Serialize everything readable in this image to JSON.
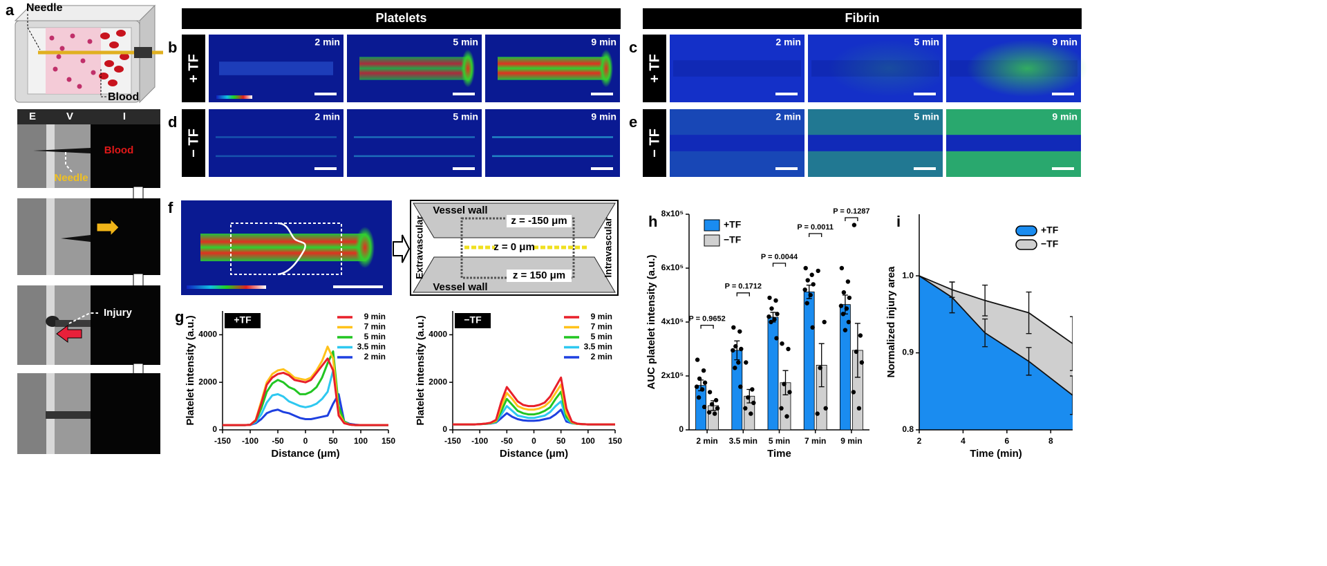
{
  "figure": {
    "a": {
      "letter": "a",
      "needle": "Needle",
      "blood": "Blood",
      "zones": [
        "E",
        "V",
        "I"
      ],
      "blood2": "Blood",
      "needle2": "Needle",
      "injury": "Injury"
    },
    "headers": [
      "Platelets",
      "Fibrin"
    ],
    "rows": [
      {
        "letter": "b",
        "condition": "+ TF",
        "times": [
          "2 min",
          "5 min",
          "9 min"
        ]
      },
      {
        "letter": "c",
        "condition": "+ TF",
        "times": [
          "2 min",
          "5 min",
          "9 min"
        ]
      },
      {
        "letter": "d",
        "condition": "− TF",
        "times": [
          "2 min",
          "5 min",
          "9 min"
        ]
      },
      {
        "letter": "e",
        "condition": "− TF",
        "times": [
          "2 min",
          "5 min",
          "9 min"
        ]
      }
    ],
    "f": {
      "letter": "f",
      "vessel_wall_top": "Vessel wall",
      "vessel_wall_bottom": "Vessel wall",
      "z_top": "z = -150 μm",
      "z_mid": "z = 0 μm",
      "z_bottom": "z = 150 μm",
      "extravascular": "Extravascular",
      "intravascular": "Intravascular"
    },
    "g_letter": "g",
    "h_letter": "h",
    "i_letter": "i"
  },
  "chart_data": [
    {
      "type": "line",
      "tag": "+TF",
      "xlabel": "Distance (μm)",
      "ylabel": "Platelet intensity (a.u.)",
      "x": [
        -150,
        -140,
        -130,
        -120,
        -110,
        -100,
        -90,
        -80,
        -70,
        -60,
        -50,
        -40,
        -30,
        -20,
        -10,
        0,
        10,
        20,
        30,
        40,
        50,
        60,
        70,
        80,
        90,
        100,
        110,
        120,
        130,
        140,
        150
      ],
      "xlim": [
        -150,
        150
      ],
      "xticks": [
        -150,
        -100,
        -50,
        0,
        50,
        100,
        150
      ],
      "ylim": [
        0,
        5000
      ],
      "yticks": [
        0,
        2000,
        4000
      ],
      "series": [
        {
          "name": "9 min",
          "color": "#e8202a",
          "values": [
            200,
            200,
            200,
            200,
            200,
            210,
            400,
            1100,
            1900,
            2200,
            2350,
            2400,
            2300,
            2100,
            2050,
            2000,
            2100,
            2400,
            2700,
            3000,
            2500,
            600,
            280,
            220,
            200,
            200,
            200,
            200,
            200,
            200,
            200
          ]
        },
        {
          "name": "7 min",
          "color": "#ffc21a",
          "values": [
            200,
            200,
            200,
            200,
            200,
            210,
            420,
            1200,
            2000,
            2350,
            2500,
            2550,
            2400,
            2200,
            2150,
            2100,
            2200,
            2500,
            2900,
            3500,
            3000,
            700,
            300,
            220,
            200,
            200,
            200,
            200,
            200,
            200,
            200
          ]
        },
        {
          "name": "5 min",
          "color": "#22c522",
          "values": [
            200,
            200,
            200,
            200,
            200,
            210,
            380,
            900,
            1600,
            1950,
            2100,
            2000,
            1800,
            1700,
            1500,
            1500,
            1600,
            1800,
            2200,
            2800,
            3300,
            1000,
            350,
            220,
            200,
            200,
            200,
            200,
            200,
            200,
            200
          ]
        },
        {
          "name": "3.5 min",
          "color": "#2ec8f0",
          "values": [
            200,
            200,
            200,
            200,
            200,
            210,
            330,
            650,
            1150,
            1450,
            1500,
            1400,
            1200,
            1100,
            1000,
            950,
            1000,
            1100,
            1300,
            1600,
            2500,
            800,
            300,
            220,
            200,
            200,
            200,
            200,
            200,
            200,
            200
          ]
        },
        {
          "name": "2 min",
          "color": "#1e40e0",
          "values": [
            200,
            200,
            200,
            200,
            200,
            210,
            280,
            450,
            700,
            800,
            850,
            750,
            700,
            600,
            500,
            450,
            450,
            500,
            550,
            600,
            1100,
            1500,
            350,
            250,
            220,
            200,
            200,
            200,
            200,
            200,
            200
          ]
        }
      ]
    },
    {
      "type": "line",
      "tag": "−TF",
      "xlabel": "Distance (μm)",
      "ylabel": "Platelet intensity (a.u.)",
      "x": [
        -150,
        -140,
        -130,
        -120,
        -110,
        -100,
        -90,
        -80,
        -70,
        -60,
        -50,
        -40,
        -30,
        -20,
        -10,
        0,
        10,
        20,
        30,
        40,
        50,
        60,
        70,
        80,
        90,
        100,
        110,
        120,
        130,
        140,
        150
      ],
      "xlim": [
        -150,
        150
      ],
      "xticks": [
        -150,
        -100,
        -50,
        0,
        50,
        100,
        150
      ],
      "ylim": [
        0,
        5000
      ],
      "yticks": [
        0,
        2000,
        4000
      ],
      "series": [
        {
          "name": "9 min",
          "color": "#e8202a",
          "values": [
            230,
            230,
            230,
            230,
            230,
            240,
            260,
            300,
            420,
            1200,
            1800,
            1500,
            1200,
            1050,
            1000,
            1000,
            1050,
            1150,
            1400,
            1800,
            2200,
            900,
            350,
            260,
            240,
            230,
            230,
            230,
            230,
            230,
            230
          ]
        },
        {
          "name": "7 min",
          "color": "#ffc21a",
          "values": [
            230,
            230,
            230,
            230,
            230,
            240,
            260,
            290,
            380,
            1000,
            1550,
            1300,
            1000,
            900,
            850,
            850,
            900,
            1000,
            1200,
            1550,
            1900,
            700,
            320,
            250,
            240,
            230,
            230,
            230,
            230,
            230,
            230
          ]
        },
        {
          "name": "5 min",
          "color": "#22c522",
          "values": [
            230,
            230,
            230,
            230,
            230,
            240,
            255,
            280,
            350,
            800,
            1300,
            1050,
            800,
            700,
            650,
            650,
            700,
            800,
            950,
            1300,
            1600,
            550,
            300,
            250,
            240,
            230,
            230,
            230,
            230,
            230,
            230
          ]
        },
        {
          "name": "3.5 min",
          "color": "#2ec8f0",
          "values": [
            230,
            230,
            230,
            230,
            230,
            240,
            250,
            270,
            330,
            650,
            1000,
            800,
            600,
            550,
            500,
            500,
            550,
            600,
            750,
            1000,
            1200,
            450,
            290,
            250,
            240,
            230,
            230,
            230,
            230,
            230,
            230
          ]
        },
        {
          "name": "2 min",
          "color": "#1e40e0",
          "values": [
            230,
            230,
            230,
            230,
            230,
            240,
            250,
            265,
            310,
            500,
            700,
            550,
            450,
            400,
            380,
            380,
            400,
            450,
            500,
            650,
            850,
            350,
            280,
            250,
            240,
            230,
            230,
            230,
            230,
            230,
            230
          ]
        }
      ]
    },
    {
      "type": "bar",
      "xlabel": "Time",
      "ylabel": "AUC platelet intensity (a.u.)",
      "categories": [
        "2 min",
        "3.5 min",
        "5 min",
        "7 min",
        "9 min"
      ],
      "p_values": [
        "P = 0.9652",
        "P = 0.1712",
        "P = 0.0044",
        "P = 0.0011",
        "P = 0.1287"
      ],
      "ylim": [
        0,
        800000
      ],
      "yticks": [
        0,
        {
          "value": 200000,
          "label": "2x10⁵"
        },
        {
          "value": 400000,
          "label": "4x10⁵"
        },
        {
          "value": 600000,
          "label": "6x10⁵"
        },
        {
          "value": 800000,
          "label": "8x10⁵"
        }
      ],
      "series": [
        {
          "name": "+TF",
          "color": "#1a8cf0",
          "values": [
            165000,
            295000,
            418000,
            512000,
            465000
          ],
          "errors": [
            20000,
            35000,
            18000,
            25000,
            35000
          ],
          "points": [
            [
              260000,
              220000,
              190000,
              175000,
              160000,
              150000,
              120000,
              85000
            ],
            [
              380000,
              365000,
              310000,
              300000,
              295000,
              250000,
              230000,
              160000
            ],
            [
              490000,
              480000,
              450000,
              430000,
              420000,
              410000,
              400000,
              340000
            ],
            [
              600000,
              575000,
              555000,
              540000,
              520000,
              500000,
              470000,
              380000
            ],
            [
              600000,
              550000,
              510000,
              490000,
              460000,
              450000,
              430000,
              400000,
              370000
            ]
          ]
        },
        {
          "name": "−TF",
          "color": "#d0d0d0",
          "values": [
            90000,
            125000,
            175000,
            240000,
            295000
          ],
          "errors": [
            18000,
            25000,
            45000,
            80000,
            100000
          ],
          "points": [
            [
              140000,
              110000,
              95000,
              80000,
              65000,
              60000
            ],
            [
              250000,
              150000,
              120000,
              100000,
              80000,
              60000
            ],
            [
              320000,
              300000,
              170000,
              140000,
              80000,
              50000
            ],
            [
              590000,
              400000,
              230000,
              80000,
              60000
            ],
            [
              760000,
              350000,
              290000,
              250000,
              140000,
              80000
            ]
          ]
        }
      ]
    },
    {
      "type": "area",
      "xlabel": "Time (min)",
      "ylabel": "Normalized injury area",
      "x": [
        2,
        3.5,
        5,
        7,
        9
      ],
      "xlim": [
        2,
        9
      ],
      "xticks": [
        2,
        4,
        6,
        8
      ],
      "ylim": [
        0.8,
        1.08
      ],
      "yticks": [
        0.8,
        0.9,
        {
          "value": 1,
          "label": "1.0"
        }
      ],
      "series": [
        {
          "name": "+TF",
          "color": "#1a8cf0",
          "values": [
            1,
            0.972,
            0.926,
            0.889,
            0.845
          ],
          "errors": [
            null,
            0.02,
            0.018,
            0.018,
            0.025
          ]
        },
        {
          "name": "−TF",
          "color": "#cfcfcf",
          "values": [
            1,
            0.982,
            0.968,
            0.952,
            0.912
          ],
          "errors": [
            null,
            0.01,
            0.02,
            0.027,
            0.035
          ]
        }
      ]
    }
  ]
}
